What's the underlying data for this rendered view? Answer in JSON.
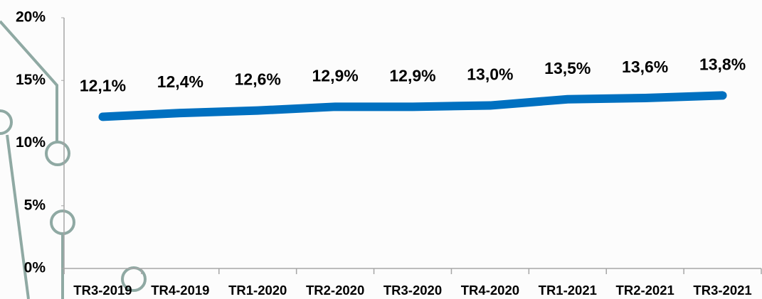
{
  "chart_data": {
    "type": "line",
    "categories": [
      "TR3-2019",
      "TR4-2019",
      "TR1-2020",
      "TR2-2020",
      "TR3-2020",
      "TR4-2020",
      "TR1-2021",
      "TR2-2021",
      "TR3-2021"
    ],
    "series": [
      {
        "color": "#0070c0",
        "values": [
          12.1,
          12.4,
          12.6,
          12.9,
          12.9,
          13.0,
          13.5,
          13.6,
          13.8
        ],
        "value_labels": [
          "12,1%",
          "12,4%",
          "12,6%",
          "12,9%",
          "12,9%",
          "13,0%",
          "13,5%",
          "13,6%",
          "13,8%"
        ]
      }
    ],
    "ylim": [
      0,
      20
    ],
    "yticks": [
      {
        "value": 0,
        "label": "0%"
      },
      {
        "value": 5,
        "label": "5%"
      },
      {
        "value": 10,
        "label": "10%"
      },
      {
        "value": 15,
        "label": "15%"
      },
      {
        "value": 20,
        "label": "20%"
      }
    ]
  }
}
